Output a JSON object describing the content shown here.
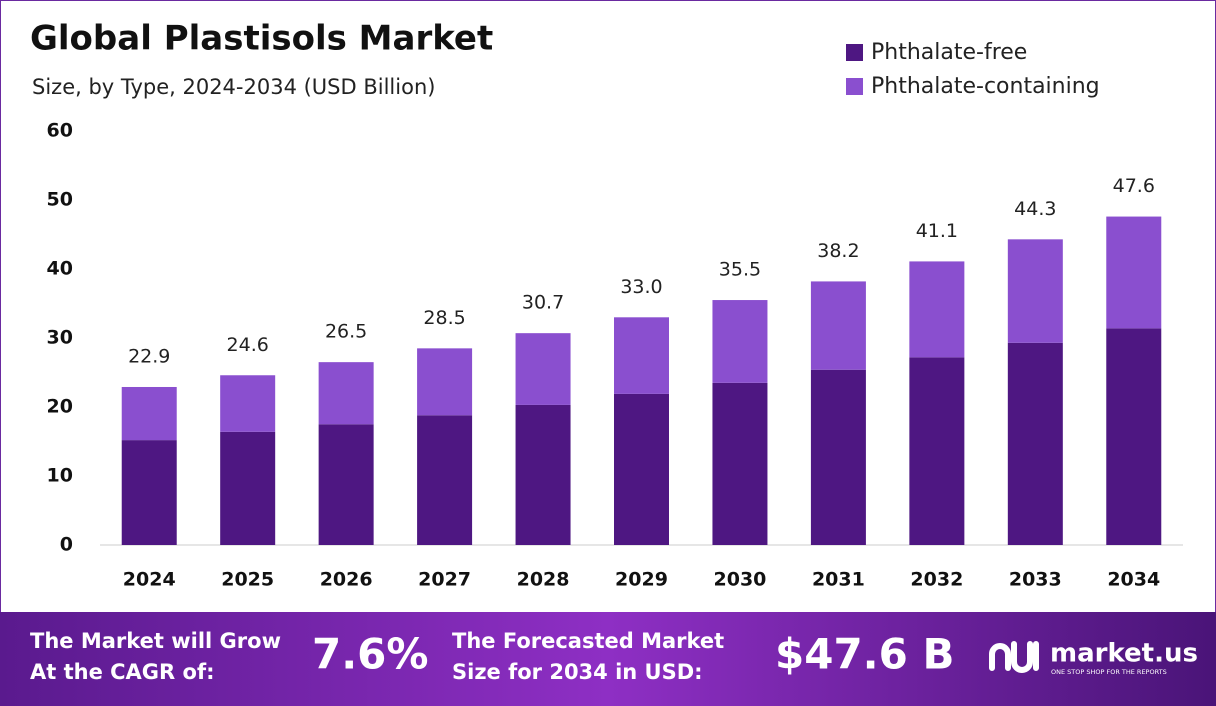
{
  "chart_data": {
    "type": "stacked-bar",
    "title": "Global Plastisols Market",
    "subtitle": "Size, by Type, 2024-2034 (USD Billion)",
    "categories": [
      "2024",
      "2025",
      "2026",
      "2027",
      "2028",
      "2029",
      "2030",
      "2031",
      "2032",
      "2033",
      "2034"
    ],
    "series": [
      {
        "name": "Phthalate-free",
        "color": "#4e1782",
        "values": [
          15.2,
          16.4,
          17.5,
          18.8,
          20.3,
          21.9,
          23.5,
          25.4,
          27.2,
          29.3,
          31.4
        ]
      },
      {
        "name": "Phthalate-containing",
        "color": "#8a4fcf",
        "values": [
          7.7,
          8.2,
          9.0,
          9.7,
          10.4,
          11.1,
          12.0,
          12.8,
          13.9,
          15.0,
          16.2
        ]
      }
    ],
    "totals": {
      "values": [
        22.9,
        24.6,
        26.5,
        28.5,
        30.7,
        33.0,
        35.5,
        38.2,
        41.1,
        44.3,
        47.6
      ],
      "value_labels": [
        "22.9",
        "24.6",
        "26.5",
        "28.5",
        "30.7",
        "33.0",
        "35.5",
        "38.2",
        "41.1",
        "44.3",
        "47.6"
      ]
    },
    "ylim": [
      0,
      60
    ],
    "yticks": [
      0,
      10,
      20,
      30,
      40,
      50,
      60
    ],
    "grid": false,
    "legend": "top-right"
  },
  "footer": {
    "cagr_text": [
      "The Market will Grow",
      "At the CAGR of:"
    ],
    "cagr_value": "7.6%",
    "forecast_text": [
      "The Forecasted Market",
      "Size for 2034 in USD:"
    ],
    "forecast_value": "$47.6 B",
    "brand": "market.us",
    "tagline": "ONE STOP SHOP FOR THE REPORTS"
  }
}
